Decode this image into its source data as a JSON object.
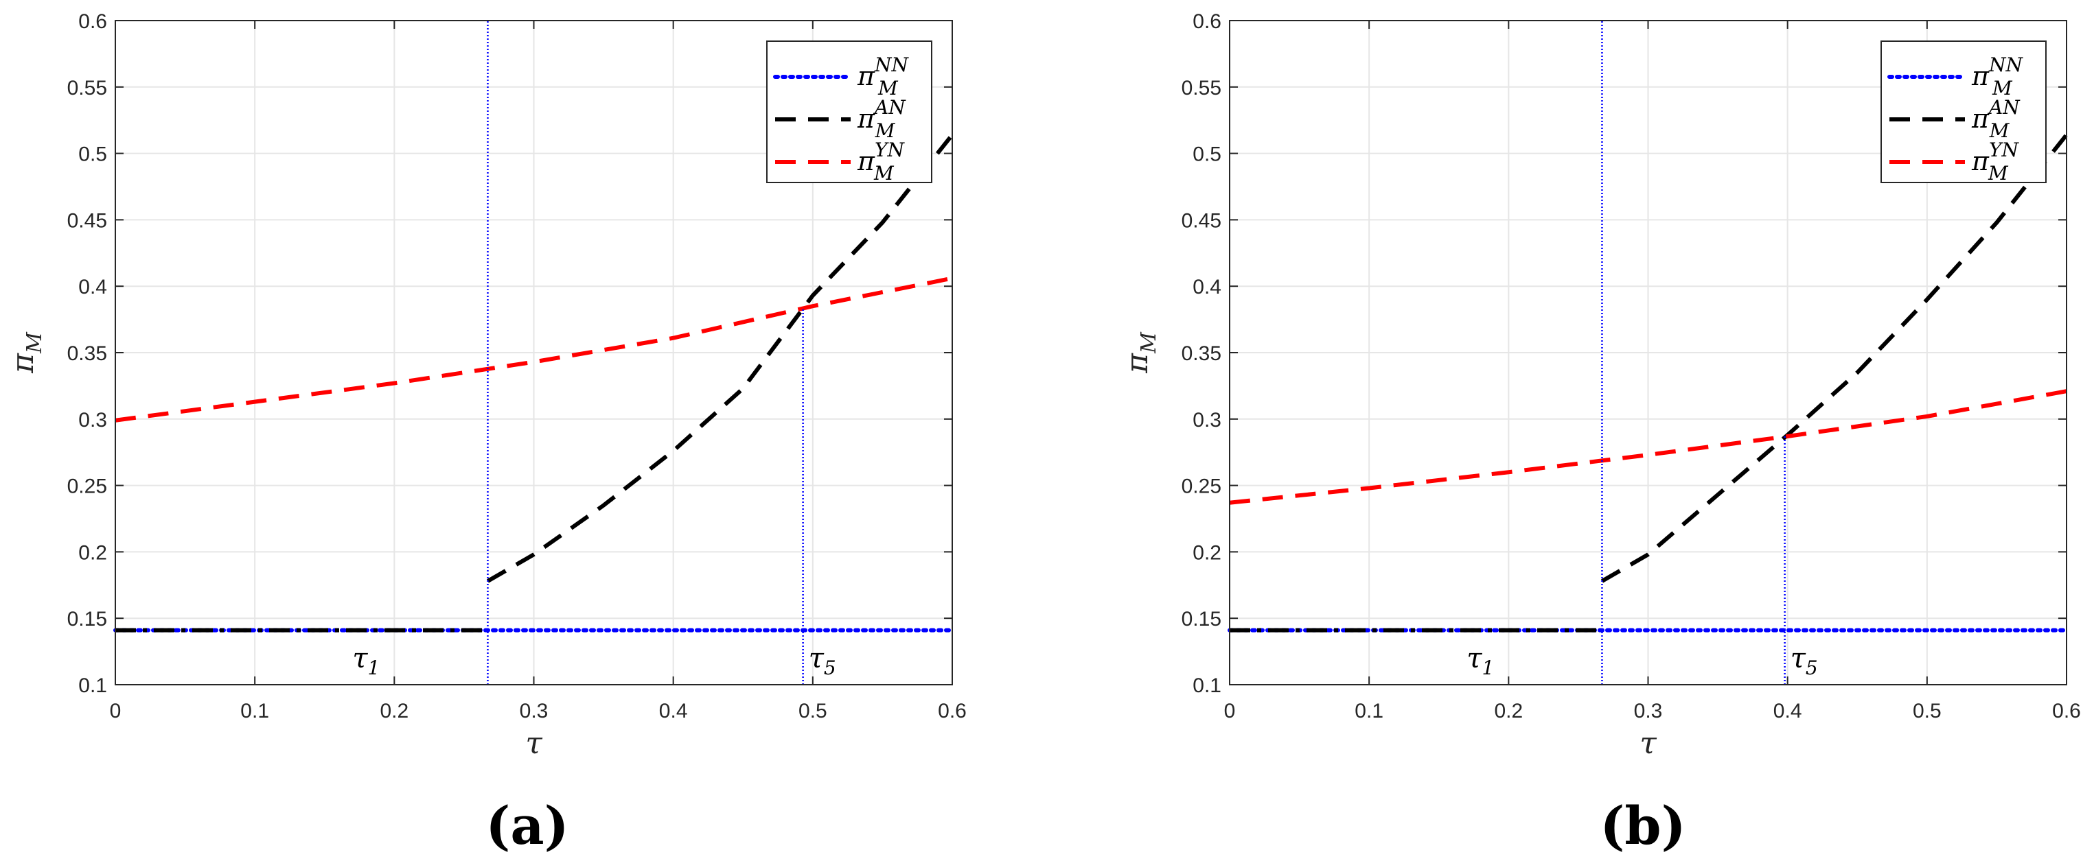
{
  "chart_data": [
    {
      "type": "line",
      "panel_label": "(a)",
      "xlabel": "τ",
      "ylabel": "π_M",
      "xlim": [
        0,
        0.6
      ],
      "ylim": [
        0.1,
        0.6
      ],
      "xticks": [
        "0",
        "0.1",
        "0.2",
        "0.3",
        "0.4",
        "0.5",
        "0.6"
      ],
      "yticks": [
        "0.1",
        "0.15",
        "0.2",
        "0.25",
        "0.3",
        "0.35",
        "0.4",
        "0.45",
        "0.5",
        "0.55",
        "0.6"
      ],
      "grid": true,
      "legend_position": "top-right",
      "series": [
        {
          "key": "NN",
          "legend": {
            "base": "π",
            "sup": "NN",
            "sub": "M"
          },
          "color": "#0000ff",
          "style": "dotted",
          "x": [
            0,
            0.6
          ],
          "y": [
            0.141,
            0.141
          ]
        },
        {
          "key": "AN",
          "legend": {
            "base": "π",
            "sup": "AN",
            "sub": "M"
          },
          "color": "#000000",
          "style": "dashed",
          "x": [
            0.267,
            0.3,
            0.35,
            0.4,
            0.45,
            0.5,
            0.55,
            0.6
          ],
          "y": [
            0.178,
            0.198,
            0.235,
            0.276,
            0.323,
            0.393,
            0.448,
            0.514
          ]
        },
        {
          "key": "YN",
          "legend": {
            "base": "π",
            "sup": "YN",
            "sub": "M"
          },
          "color": "#ff0000",
          "style": "dashed",
          "x": [
            0,
            0.1,
            0.2,
            0.3,
            0.4,
            0.5,
            0.6
          ],
          "y": [
            0.299,
            0.313,
            0.327,
            0.343,
            0.361,
            0.385,
            0.406
          ]
        },
        {
          "key": "AN_low",
          "color": "#000000",
          "style": "dashdot",
          "x": [
            0,
            0.267
          ],
          "y": [
            0.141,
            0.141
          ]
        }
      ],
      "vlines": [
        {
          "x": 0.267,
          "y_from": 0.1,
          "y_to": 0.6,
          "color": "#0000ff"
        },
        {
          "x": 0.493,
          "y_from": 0.1,
          "y_to": 0.383,
          "color": "#0000ff"
        }
      ],
      "annotations": [
        {
          "base": "τ",
          "sub": "1",
          "x": 0.17,
          "y": 0.113
        },
        {
          "base": "τ",
          "sub": "5",
          "x": 0.497,
          "y": 0.113
        }
      ]
    },
    {
      "type": "line",
      "panel_label": "(b)",
      "xlabel": "τ",
      "ylabel": "π_M",
      "xlim": [
        0,
        0.6
      ],
      "ylim": [
        0.1,
        0.6
      ],
      "xticks": [
        "0",
        "0.1",
        "0.2",
        "0.3",
        "0.4",
        "0.5",
        "0.6"
      ],
      "yticks": [
        "0.1",
        "0.15",
        "0.2",
        "0.25",
        "0.3",
        "0.35",
        "0.4",
        "0.45",
        "0.5",
        "0.55",
        "0.6"
      ],
      "grid": true,
      "legend_position": "top-right",
      "series": [
        {
          "key": "NN",
          "legend": {
            "base": "π",
            "sup": "NN",
            "sub": "M"
          },
          "color": "#0000ff",
          "style": "dotted",
          "x": [
            0,
            0.6
          ],
          "y": [
            0.141,
            0.141
          ]
        },
        {
          "key": "AN",
          "legend": {
            "base": "π",
            "sup": "AN",
            "sub": "M"
          },
          "color": "#000000",
          "style": "dashed",
          "x": [
            0.267,
            0.3,
            0.35,
            0.4,
            0.45,
            0.5,
            0.55,
            0.6
          ],
          "y": [
            0.178,
            0.198,
            0.243,
            0.288,
            0.335,
            0.39,
            0.448,
            0.514
          ]
        },
        {
          "key": "YN",
          "legend": {
            "base": "π",
            "sup": "YN",
            "sub": "M"
          },
          "color": "#ff0000",
          "style": "dashed",
          "x": [
            0,
            0.1,
            0.2,
            0.3,
            0.4,
            0.5,
            0.6
          ],
          "y": [
            0.237,
            0.248,
            0.26,
            0.273,
            0.287,
            0.302,
            0.321
          ]
        },
        {
          "key": "AN_low",
          "color": "#000000",
          "style": "dashdot",
          "x": [
            0,
            0.267
          ],
          "y": [
            0.141,
            0.141
          ]
        }
      ],
      "vlines": [
        {
          "x": 0.267,
          "y_from": 0.1,
          "y_to": 0.6,
          "color": "#0000ff"
        },
        {
          "x": 0.398,
          "y_from": 0.1,
          "y_to": 0.287,
          "color": "#0000ff"
        }
      ],
      "annotations": [
        {
          "base": "τ",
          "sub": "1",
          "x": 0.17,
          "y": 0.113
        },
        {
          "base": "τ",
          "sub": "5",
          "x": 0.402,
          "y": 0.113
        }
      ]
    }
  ]
}
